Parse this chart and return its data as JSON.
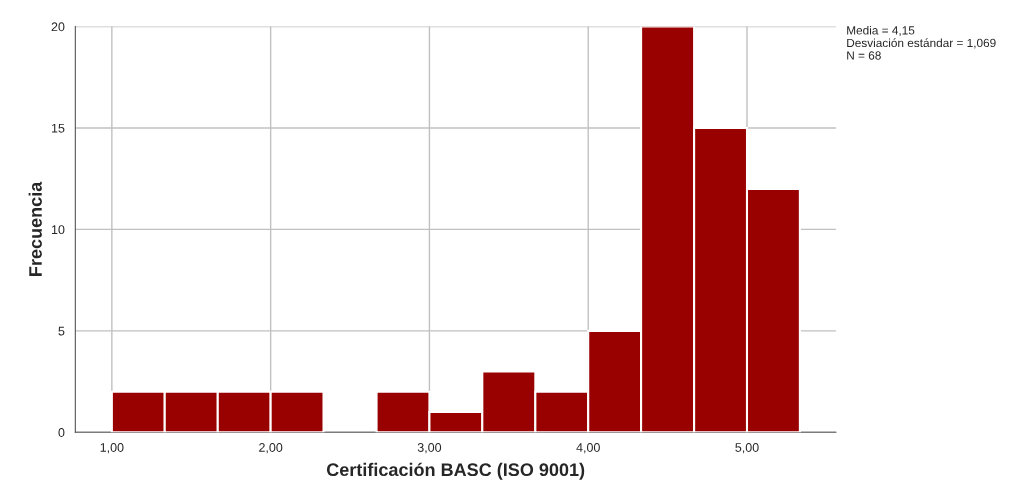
{
  "chart_data": {
    "type": "histogram",
    "xlabel": "Certificación BASC (ISO 9001)",
    "ylabel": "Frecuencia",
    "bins": [
      1.0,
      1.333,
      1.667,
      2.0,
      2.333,
      2.667,
      3.0,
      3.333,
      3.667,
      4.0,
      4.333,
      4.667,
      5.0,
      5.333
    ],
    "values": [
      2,
      2,
      2,
      2,
      0,
      2,
      1,
      3,
      2,
      5,
      20,
      15,
      12
    ],
    "color": "#990000",
    "xlim": [
      0.77,
      5.56
    ],
    "ylim": [
      0,
      20
    ],
    "xticks": [
      {
        "value": 1,
        "label": "1,00"
      },
      {
        "value": 2,
        "label": "2,00"
      },
      {
        "value": 3,
        "label": "3,00"
      },
      {
        "value": 4,
        "label": "4,00"
      },
      {
        "value": 5,
        "label": "5,00"
      }
    ],
    "yticks": [
      0,
      5,
      10,
      15,
      20
    ],
    "grid": true,
    "annotations": [
      "Media = 4,15",
      "Desviación estándar = 1,069",
      "N = 68"
    ]
  }
}
